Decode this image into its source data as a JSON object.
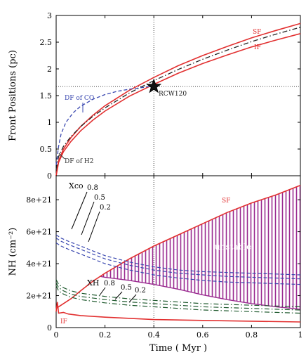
{
  "colors": {
    "shock_front": "#e23030",
    "ionization_front": "#e23030",
    "co_dissociation_front": "#3a48b0",
    "h2_dissociation_front": "#222222",
    "xco_curves": "#3a48b0",
    "xh_curves": "#1f5a2e",
    "unstable_fill": "#9a2a90",
    "axes": "#000000",
    "reference_lines": "#444444"
  },
  "chart_data": [
    {
      "type": "line",
      "panel": "top",
      "xlabel": "",
      "ylabel": "Front Positions (pc)",
      "xlim": [
        0,
        1
      ],
      "ylim": [
        0,
        3
      ],
      "x_ticks": [
        0,
        0.2,
        0.4,
        0.6,
        0.8,
        1
      ],
      "y_ticks": [
        0,
        0.5,
        1,
        1.5,
        2,
        2.5,
        3
      ],
      "y_tick_labels": [
        "0",
        "0.5",
        "1",
        "1.5",
        "2",
        "2.5",
        "3"
      ],
      "reference": {
        "x": 0.4,
        "y": 1.67,
        "label": "RCW120",
        "marker": "star"
      },
      "series": [
        {
          "name": "SF",
          "style": "solid",
          "x": [
            0,
            0.01,
            0.03,
            0.06,
            0.1,
            0.15,
            0.2,
            0.3,
            0.4,
            0.5,
            0.6,
            0.7,
            0.8,
            0.9,
            1.0
          ],
          "y": [
            0,
            0.28,
            0.5,
            0.71,
            0.92,
            1.13,
            1.31,
            1.6,
            1.84,
            2.06,
            2.25,
            2.42,
            2.58,
            2.72,
            2.85
          ]
        },
        {
          "name": "IF",
          "style": "solid",
          "x": [
            0,
            0.01,
            0.03,
            0.06,
            0.1,
            0.15,
            0.2,
            0.3,
            0.4,
            0.5,
            0.6,
            0.7,
            0.8,
            0.9,
            1.0
          ],
          "y": [
            0,
            0.25,
            0.45,
            0.64,
            0.84,
            1.04,
            1.21,
            1.49,
            1.71,
            1.92,
            2.1,
            2.26,
            2.41,
            2.54,
            2.66
          ]
        },
        {
          "name": "DF of H2",
          "style": "dashdot",
          "x": [
            0,
            0.01,
            0.03,
            0.06,
            0.1,
            0.15,
            0.2,
            0.3,
            0.4,
            0.5,
            0.6,
            0.7,
            0.8,
            0.9,
            1.0
          ],
          "y": [
            0.12,
            0.36,
            0.55,
            0.73,
            0.92,
            1.11,
            1.27,
            1.55,
            1.78,
            1.99,
            2.18,
            2.35,
            2.51,
            2.65,
            2.78
          ]
        },
        {
          "name": "DF of CO",
          "style": "dashed",
          "x": [
            0,
            0.01,
            0.02,
            0.04,
            0.07,
            0.1,
            0.15,
            0.2,
            0.25,
            0.3,
            0.35,
            0.4
          ],
          "y": [
            0.2,
            0.55,
            0.78,
            1.0,
            1.18,
            1.3,
            1.43,
            1.52,
            1.58,
            1.62,
            1.65,
            1.68
          ]
        }
      ],
      "annotations": [
        "SF",
        "IF",
        "DF of CO",
        "DF of H2",
        "RCW120"
      ]
    },
    {
      "type": "line",
      "panel": "bottom",
      "xlabel": "Time ( Myr )",
      "ylabel": "NH (cm⁻²)",
      "xlim": [
        0,
        1
      ],
      "ylim": [
        0,
        9.5e+21
      ],
      "x_ticks": [
        0,
        0.2,
        0.4,
        0.6,
        0.8,
        1
      ],
      "x_tick_labels": [
        "0",
        "0.2",
        "0.4",
        "0.6",
        "0.8",
        "1"
      ],
      "y_ticks": [
        0,
        2e+21,
        4e+21,
        6e+21,
        8e+21
      ],
      "y_tick_labels": [
        "0",
        "2e+21",
        "4e+21",
        "6e+21",
        "8e+21"
      ],
      "reference_x": 0.4,
      "series": [
        {
          "name": "SF",
          "style": "solid",
          "x": [
            0,
            0.01,
            0.03,
            0.06,
            0.1,
            0.15,
            0.2,
            0.3,
            0.4,
            0.5,
            0.6,
            0.7,
            0.8,
            0.9,
            1.0
          ],
          "y": [
            1.2e+21,
            1.3e+21,
            1.5e+21,
            1.8e+21,
            2.3e+21,
            2.9e+21,
            3.4e+21,
            4.3e+21,
            5.1e+21,
            5.8e+21,
            6.5e+21,
            7.2e+21,
            7.8e+21,
            8.3e+21,
            8.9e+21
          ]
        },
        {
          "name": "IF",
          "style": "solid",
          "x": [
            0,
            0.005,
            0.01,
            0.03,
            0.05,
            0.1,
            0.2,
            0.4,
            0.6,
            0.8,
            1.0
          ],
          "y": [
            1e+21,
            1.6e+21,
            9e+20,
            9.5e+20,
            8.5e+20,
            7.5e+20,
            6.5e+20,
            5e+20,
            4.5e+20,
            4e+20,
            3.5e+20
          ]
        },
        {
          "name": "Xco 0.8",
          "style": "dashed",
          "x": [
            0,
            0.02,
            0.05,
            0.1,
            0.15,
            0.2,
            0.3,
            0.4,
            0.5,
            0.6,
            0.7,
            0.8,
            0.9,
            1.0
          ],
          "y": [
            5.8e+21,
            5.6e+21,
            5.4e+21,
            5.1e+21,
            4.8e+21,
            4.5e+21,
            4.1e+21,
            3.8e+21,
            3.6e+21,
            3.5e+21,
            3.45e+21,
            3.4e+21,
            3.35e+21,
            3.3e+21
          ]
        },
        {
          "name": "Xco 0.5",
          "style": "dashed",
          "x": [
            0,
            0.02,
            0.05,
            0.1,
            0.15,
            0.2,
            0.3,
            0.4,
            0.5,
            0.6,
            0.7,
            0.8,
            0.9,
            1.0
          ],
          "y": [
            5.6e+21,
            5.4e+21,
            5.2e+21,
            4.9e+21,
            4.6e+21,
            4.3e+21,
            3.9e+21,
            3.6e+21,
            3.4e+21,
            3.3e+21,
            3.2e+21,
            3.15e+21,
            3.1e+21,
            3.05e+21
          ]
        },
        {
          "name": "Xco 0.2",
          "style": "dashed",
          "x": [
            0,
            0.02,
            0.05,
            0.1,
            0.15,
            0.2,
            0.3,
            0.4,
            0.5,
            0.6,
            0.7,
            0.8,
            0.9,
            1.0
          ],
          "y": [
            5.3e+21,
            5.1e+21,
            4.9e+21,
            4.6e+21,
            4.3e+21,
            4e+21,
            3.6e+21,
            3.3e+21,
            3.1e+21,
            2.95e+21,
            2.85e+21,
            2.8e+21,
            2.75e+21,
            2.7e+21
          ]
        },
        {
          "name": "XH 0.8",
          "style": "dashdot",
          "x": [
            0,
            0.01,
            0.03,
            0.06,
            0.1,
            0.2,
            0.3,
            0.4,
            0.5,
            0.6,
            0.7,
            0.8,
            0.9,
            1.0
          ],
          "y": [
            3e+21,
            2.7e+21,
            2.5e+21,
            2.3e+21,
            2.15e+21,
            1.95e+21,
            1.8e+21,
            1.7e+21,
            1.6e+21,
            1.5e+21,
            1.45e+21,
            1.4e+21,
            1.35e+21,
            1.3e+21
          ]
        },
        {
          "name": "XH 0.5",
          "style": "dashdot",
          "x": [
            0,
            0.01,
            0.03,
            0.06,
            0.1,
            0.2,
            0.3,
            0.4,
            0.5,
            0.6,
            0.7,
            0.8,
            0.9,
            1.0
          ],
          "y": [
            2.8e+21,
            2.5e+21,
            2.3e+21,
            2.1e+21,
            1.95e+21,
            1.75e+21,
            1.6e+21,
            1.5e+21,
            1.4e+21,
            1.3e+21,
            1.25e+21,
            1.2e+21,
            1.15e+21,
            1.1e+21
          ]
        },
        {
          "name": "XH 0.2",
          "style": "dashdot",
          "x": [
            0,
            0.01,
            0.03,
            0.06,
            0.1,
            0.2,
            0.3,
            0.4,
            0.5,
            0.6,
            0.7,
            0.8,
            0.9,
            1.0
          ],
          "y": [
            2.6e+21,
            2.3e+21,
            2.1e+21,
            1.9e+21,
            1.75e+21,
            1.55e+21,
            1.4e+21,
            1.3e+21,
            1.2e+21,
            1.1e+21,
            1.05e+21,
            1e+21,
            9.5e+20,
            9e+20
          ]
        }
      ],
      "unstable_region": {
        "label": "unstable",
        "x": [
          0.18,
          0.2,
          0.3,
          0.4,
          0.5,
          0.6,
          0.7,
          0.8,
          0.9,
          1.0
        ],
        "upper": [
          3.2e+21,
          3.4e+21,
          4.3e+21,
          5.1e+21,
          5.8e+21,
          6.5e+21,
          7.2e+21,
          7.8e+21,
          8.3e+21,
          8.9e+21
        ],
        "lower": [
          3.2e+21,
          3.15e+21,
          2.95e+21,
          2.7e+21,
          2.4e+21,
          2.05e+21,
          1.75e+21,
          1.5e+21,
          1.3e+21,
          1.15e+21
        ]
      },
      "group_labels": {
        "xco": {
          "title": "Xco",
          "values": [
            "0.8",
            "0.5",
            "0.2"
          ]
        },
        "xh": {
          "title": "XH",
          "values": [
            "0.8",
            "0.5",
            "0.2"
          ]
        }
      },
      "annotations": [
        "SF",
        "IF",
        "unstable"
      ]
    }
  ]
}
